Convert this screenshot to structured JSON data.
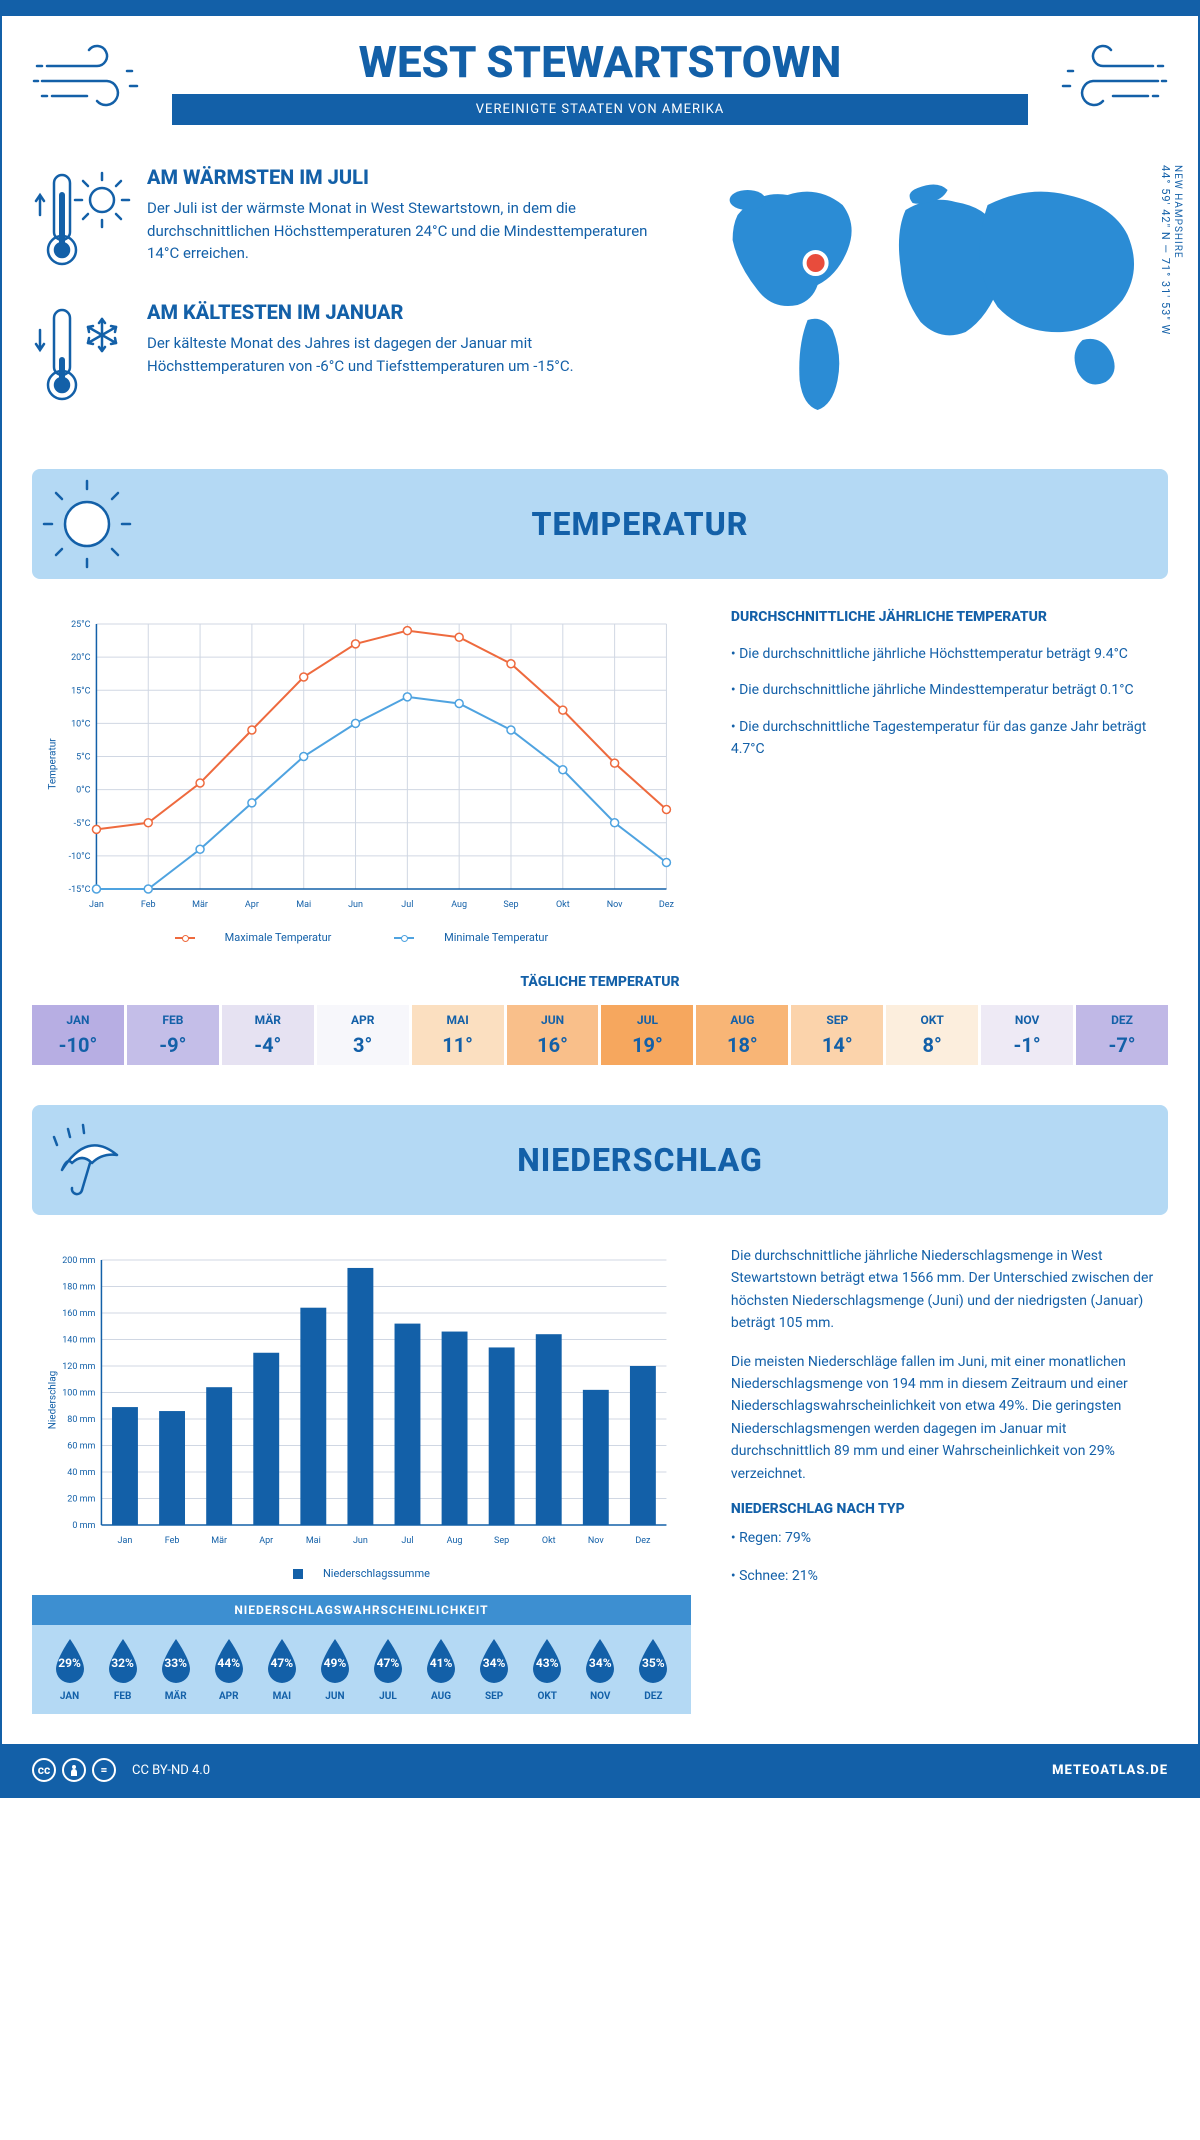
{
  "title": "WEST STEWARTSTOWN",
  "subtitle": "VEREINIGTE STAATEN VON AMERIKA",
  "coordinates": "44° 59' 42\" N — 71° 31' 53\" W",
  "region": "NEW HAMPSHIRE",
  "warmest": {
    "heading": "AM WÄRMSTEN IM JULI",
    "text": "Der Juli ist der wärmste Monat in West Stewartstown, in dem die durchschnittlichen Höchsttemperaturen 24°C und die Mindesttemperaturen 14°C erreichen."
  },
  "coldest": {
    "heading": "AM KÄLTESTEN IM JANUAR",
    "text": "Der kälteste Monat des Jahres ist dagegen der Januar mit Höchsttemperaturen von -6°C und Tiefsttemperaturen um -15°C."
  },
  "temperature": {
    "banner": "TEMPERATUR",
    "chart": {
      "type": "line",
      "months": [
        "Jan",
        "Feb",
        "Mär",
        "Apr",
        "Mai",
        "Jun",
        "Jul",
        "Aug",
        "Sep",
        "Okt",
        "Nov",
        "Dez"
      ],
      "y_axis_label": "Temperatur",
      "ylim": [
        -15,
        25
      ],
      "ytick_step": 5,
      "ytick_suffix": "°C",
      "series": [
        {
          "name": "Maximale Temperatur",
          "color": "#ee6a3e",
          "values": [
            -6,
            -5,
            1,
            9,
            17,
            22,
            24,
            23,
            19,
            12,
            4,
            -3
          ]
        },
        {
          "name": "Minimale Temperatur",
          "color": "#4fa3e0",
          "values": [
            -15,
            -15,
            -9,
            -2,
            5,
            10,
            14,
            13,
            9,
            3,
            -5,
            -11
          ]
        }
      ],
      "grid_color": "#d0d7e3",
      "bg": "#ffffff",
      "marker": "circle",
      "marker_size": 4,
      "line_width": 2
    },
    "legend_max": "Maximale Temperatur",
    "legend_min": "Minimale Temperatur",
    "desc_heading": "DURCHSCHNITTLICHE JÄHRLICHE TEMPERATUR",
    "bullet1": "• Die durchschnittliche jährliche Höchsttemperatur beträgt 9.4°C",
    "bullet2": "• Die durchschnittliche jährliche Mindesttemperatur beträgt 0.1°C",
    "bullet3": "• Die durchschnittliche Tagestemperatur für das ganze Jahr beträgt 4.7°C",
    "daily_heading": "TÄGLICHE TEMPERATUR",
    "daily": {
      "months": [
        "JAN",
        "FEB",
        "MÄR",
        "APR",
        "MAI",
        "JUN",
        "JUL",
        "AUG",
        "SEP",
        "OKT",
        "NOV",
        "DEZ"
      ],
      "values": [
        "-10°",
        "-9°",
        "-4°",
        "3°",
        "11°",
        "16°",
        "19°",
        "18°",
        "14°",
        "8°",
        "-1°",
        "-7°"
      ],
      "colors": [
        "#b7aee3",
        "#c4bee8",
        "#e6e2f2",
        "#f7f7fb",
        "#fbdfc0",
        "#f9bf8a",
        "#f6a75e",
        "#f8b576",
        "#fbd3ab",
        "#fceedd",
        "#eeeaf5",
        "#c0b8e6"
      ]
    }
  },
  "precipitation": {
    "banner": "NIEDERSCHLAG",
    "chart": {
      "type": "bar",
      "months": [
        "Jan",
        "Feb",
        "Mär",
        "Apr",
        "Mai",
        "Jun",
        "Jul",
        "Aug",
        "Sep",
        "Okt",
        "Nov",
        "Dez"
      ],
      "values": [
        89,
        86,
        104,
        130,
        164,
        194,
        152,
        146,
        134,
        144,
        102,
        120
      ],
      "y_axis_label": "Niederschlag",
      "ylim": [
        0,
        200
      ],
      "ytick_step": 20,
      "ytick_suffix": " mm",
      "bar_color": "#1360a8",
      "grid_color": "#d0d7e3",
      "bar_width": 0.55,
      "legend": "Niederschlagssumme"
    },
    "desc1": "Die durchschnittliche jährliche Niederschlagsmenge in West Stewartstown beträgt etwa 1566 mm. Der Unterschied zwischen der höchsten Niederschlagsmenge (Juni) und der niedrigsten (Januar) beträgt 105 mm.",
    "desc2": "Die meisten Niederschläge fallen im Juni, mit einer monatlichen Niederschlagsmenge von 194 mm in diesem Zeitraum und einer Niederschlagswahrscheinlichkeit von etwa 49%. Die geringsten Niederschlagsmengen werden dagegen im Januar mit durchschnittlich 89 mm und einer Wahrscheinlichkeit von 29% verzeichnet.",
    "type_heading": "NIEDERSCHLAG NACH TYP",
    "type_rain": "• Regen: 79%",
    "type_snow": "• Schnee: 21%",
    "prob_heading": "NIEDERSCHLAGSWAHRSCHEINLICHKEIT",
    "prob": {
      "months": [
        "JAN",
        "FEB",
        "MÄR",
        "APR",
        "MAI",
        "JUN",
        "JUL",
        "AUG",
        "SEP",
        "OKT",
        "NOV",
        "DEZ"
      ],
      "values": [
        "29%",
        "32%",
        "33%",
        "44%",
        "47%",
        "49%",
        "47%",
        "41%",
        "34%",
        "43%",
        "34%",
        "35%"
      ],
      "drop_color": "#1360a8"
    }
  },
  "footer": {
    "license": "CC BY-ND 4.0",
    "site": "METEOATLAS.DE"
  }
}
